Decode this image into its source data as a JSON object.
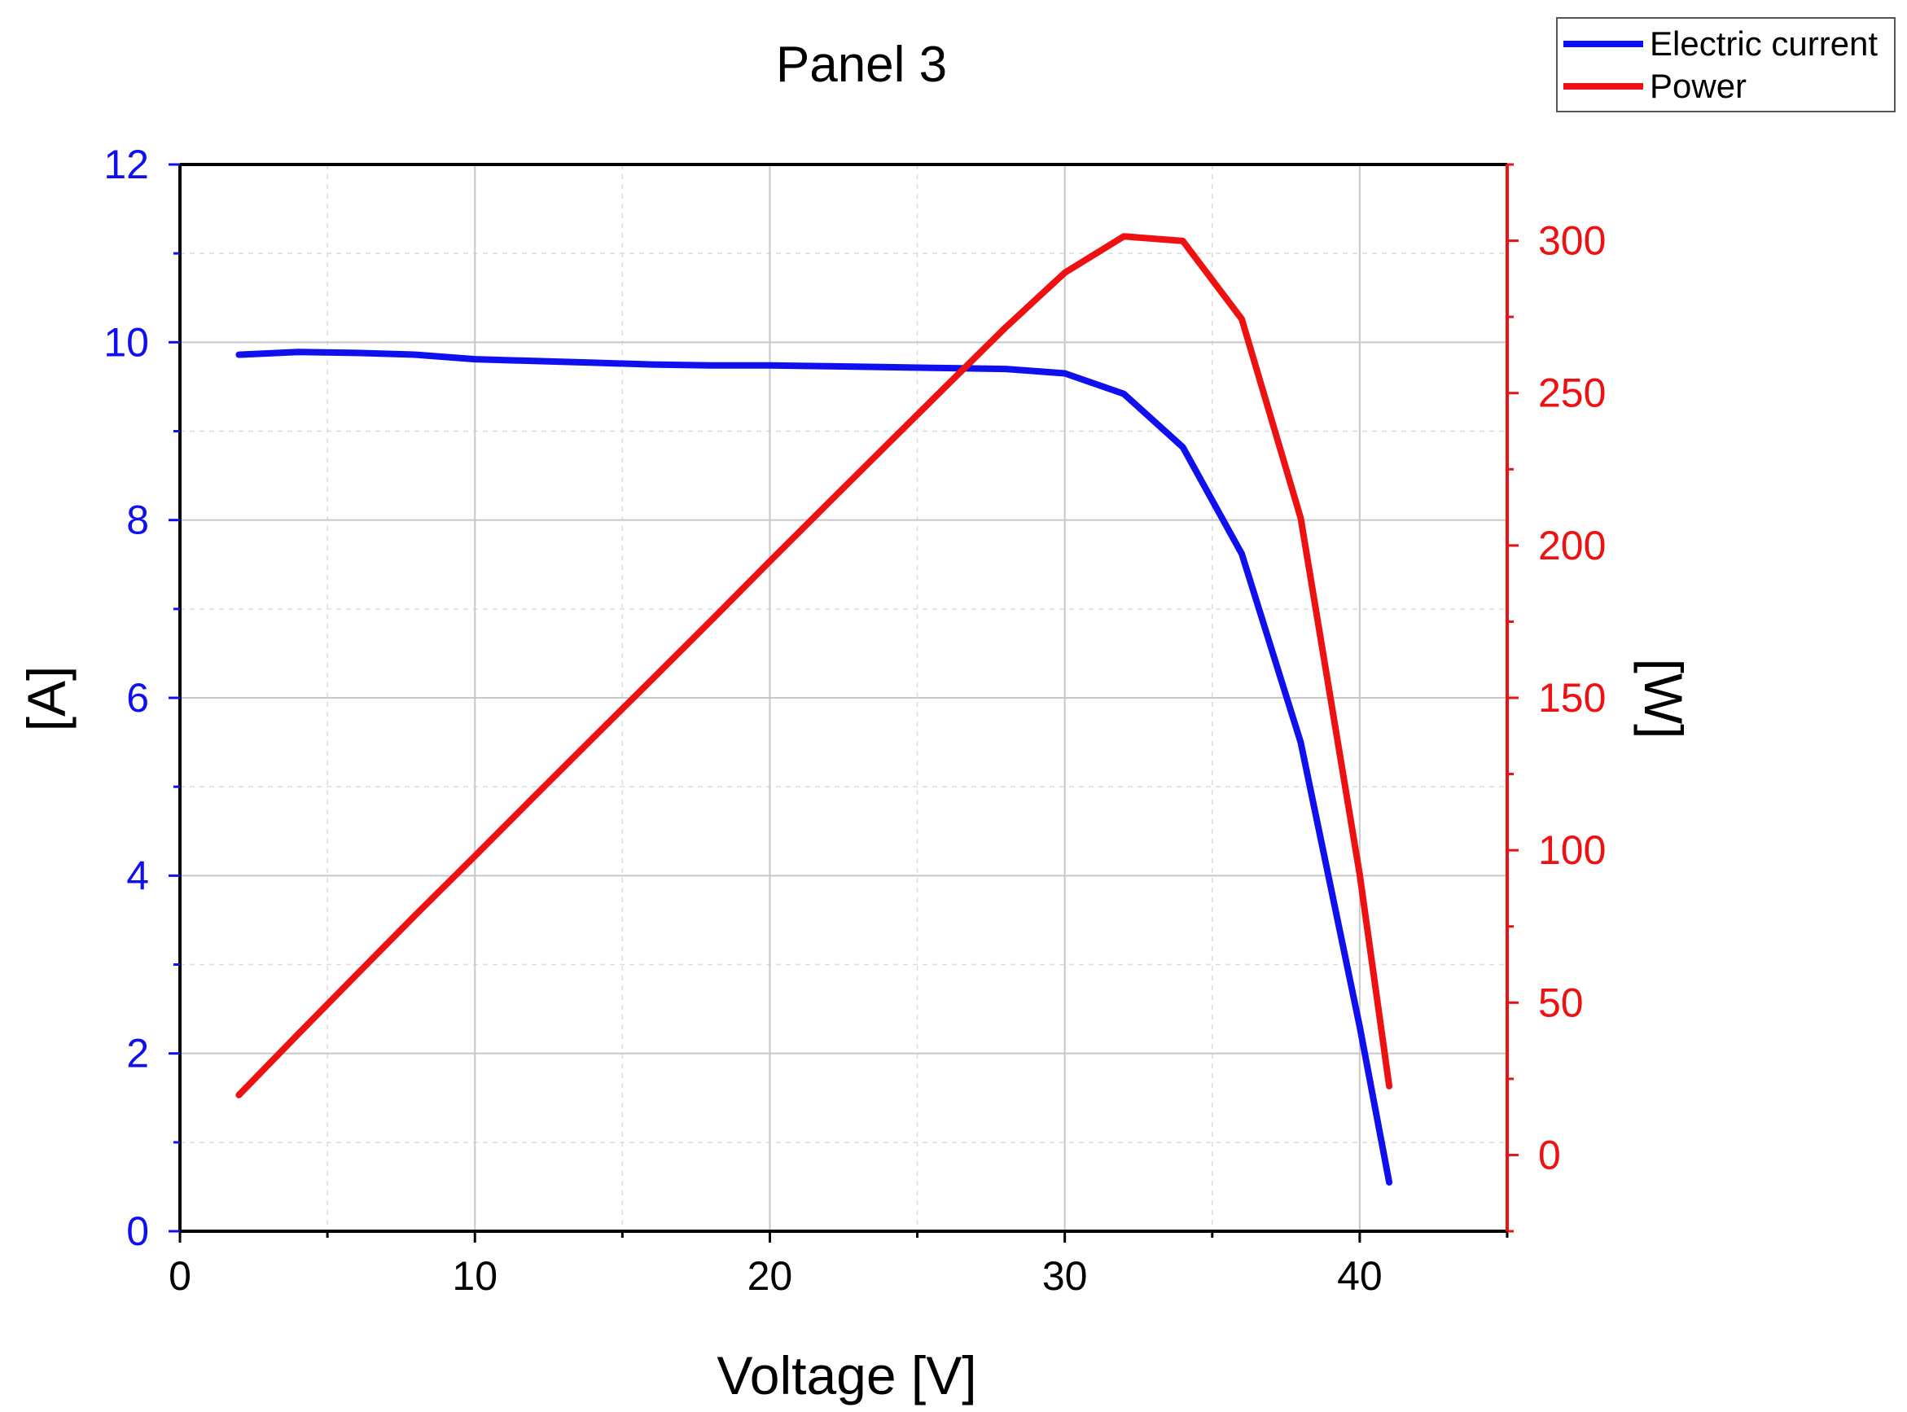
{
  "chart_data": {
    "type": "line",
    "title": "Panel 3",
    "xlabel": "Voltage [V]",
    "ylabel_left": "[A]",
    "ylabel_right": "[W]",
    "xlim": [
      0,
      45
    ],
    "ylim_left": [
      0,
      12
    ],
    "ylim_right": [
      -25,
      325
    ],
    "x_ticks": [
      0,
      10,
      20,
      30,
      40
    ],
    "y_left_ticks": [
      0,
      2,
      4,
      6,
      8,
      10,
      12
    ],
    "y_right_ticks": [
      0,
      50,
      100,
      150,
      200,
      250,
      300
    ],
    "grid": true,
    "legend_position": "top-right",
    "colors": {
      "current": "#1010ee",
      "power": "#ee1111",
      "grid": "#c8c8c8"
    },
    "series": [
      {
        "name": "Electric current",
        "axis": "left",
        "x": [
          2,
          4,
          6,
          8,
          10,
          12,
          14,
          16,
          18,
          20,
          22,
          24,
          26,
          28,
          30,
          32,
          34,
          36,
          38,
          40,
          41
        ],
        "values": [
          9.86,
          9.89,
          9.88,
          9.86,
          9.81,
          9.79,
          9.77,
          9.75,
          9.74,
          9.74,
          9.73,
          9.72,
          9.71,
          9.7,
          9.65,
          9.42,
          8.82,
          7.62,
          5.5,
          2.3,
          0.55
        ]
      },
      {
        "name": "Power",
        "axis": "right",
        "x": [
          2,
          4,
          6,
          8,
          10,
          12,
          14,
          16,
          18,
          20,
          22,
          24,
          26,
          28,
          30,
          32,
          34,
          36,
          38,
          40,
          41
        ],
        "values": [
          19.7,
          39.6,
          59.3,
          78.9,
          98.1,
          117.5,
          136.8,
          156,
          175.3,
          194.8,
          214.1,
          233.3,
          252.5,
          271.6,
          289.5,
          301.4,
          299.9,
          274.3,
          209,
          92,
          22.6
        ]
      }
    ]
  }
}
